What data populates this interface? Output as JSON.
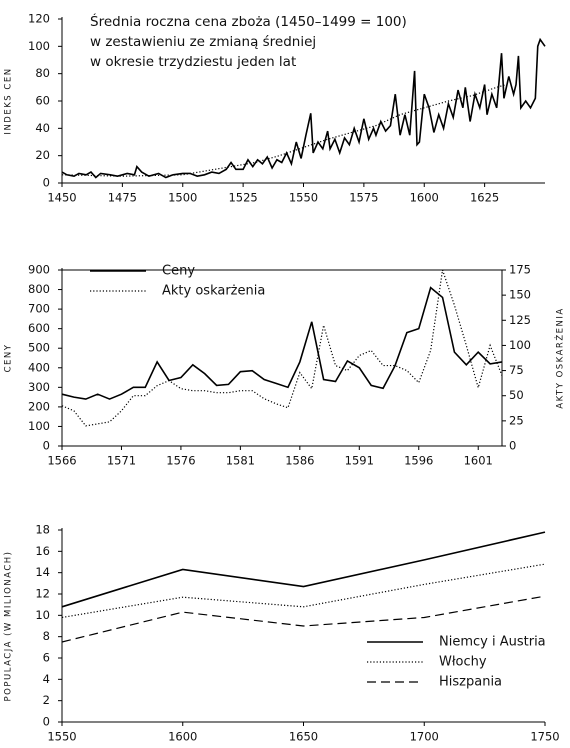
{
  "chart_data": [
    {
      "type": "line",
      "title": [
        "Średnia roczna cena zboża (1450–1499 = 100)",
        "w zestawieniu ze zmianą średniej",
        "w okresie trzydziestu jeden lat"
      ],
      "ylabel": "INDEKS CEN",
      "xlim": [
        1450,
        1650
      ],
      "xticks": [
        1450,
        1475,
        1500,
        1525,
        1550,
        1575,
        1600,
        1625
      ],
      "ylim": [
        0,
        120
      ],
      "yticks": [
        0,
        20,
        40,
        60,
        80,
        100,
        120
      ],
      "series": [
        {
          "color": "#000000",
          "dash": "solid",
          "x": [
            1450,
            1452,
            1455,
            1457,
            1460,
            1462,
            1464,
            1466,
            1470,
            1473,
            1477,
            1480,
            1481,
            1483,
            1486,
            1490,
            1493,
            1496,
            1500,
            1503,
            1506,
            1509,
            1512,
            1515,
            1518,
            1520,
            1522,
            1525,
            1527,
            1529,
            1531,
            1533,
            1535,
            1537,
            1539,
            1541,
            1543,
            1545,
            1547,
            1549,
            1551,
            1553,
            1554,
            1556,
            1558,
            1560,
            1561,
            1563,
            1565,
            1567,
            1569,
            1571,
            1573,
            1575,
            1577,
            1579,
            1580,
            1582,
            1584,
            1586,
            1588,
            1590,
            1592,
            1594,
            1596,
            1597,
            1598,
            1600,
            1602,
            1604,
            1606,
            1608,
            1610,
            1612,
            1614,
            1616,
            1617,
            1619,
            1621,
            1623,
            1625,
            1626,
            1628,
            1630,
            1632,
            1633,
            1635,
            1637,
            1638,
            1639,
            1640,
            1642,
            1644,
            1646,
            1647,
            1648,
            1650
          ],
          "values": [
            8,
            6,
            5,
            7,
            6,
            8,
            4,
            7,
            6,
            5,
            7,
            6,
            12,
            8,
            5,
            7,
            4,
            6,
            7,
            7,
            5,
            6,
            8,
            7,
            10,
            15,
            10,
            10,
            17,
            12,
            17,
            14,
            19,
            11,
            17,
            15,
            22,
            14,
            30,
            18,
            35,
            51,
            22,
            30,
            25,
            38,
            25,
            32,
            22,
            33,
            28,
            40,
            30,
            47,
            32,
            40,
            35,
            45,
            38,
            42,
            65,
            35,
            50,
            35,
            82,
            28,
            30,
            65,
            55,
            37,
            50,
            40,
            58,
            48,
            68,
            55,
            70,
            45,
            65,
            55,
            72,
            50,
            65,
            55,
            95,
            62,
            78,
            65,
            72,
            93,
            55,
            60,
            55,
            62,
            100,
            105,
            100
          ]
        },
        {
          "color": "#000000",
          "dash": "dotted",
          "x": [
            1450,
            1475,
            1500,
            1510,
            1520,
            1530,
            1540,
            1550,
            1560,
            1570,
            1580,
            1590,
            1600,
            1610,
            1620,
            1630,
            1634
          ],
          "values": [
            6,
            5,
            6,
            9,
            12,
            15,
            20,
            26,
            32,
            37,
            42,
            50,
            55,
            60,
            64,
            70,
            72
          ]
        }
      ]
    },
    {
      "type": "line",
      "ylabel": "CENY",
      "y2label": "AKTY OSKARŻENIA",
      "legend": "upper left",
      "xlim": [
        1566,
        1603
      ],
      "xticks": [
        1566,
        1571,
        1576,
        1581,
        1586,
        1591,
        1596,
        1601
      ],
      "ylim": [
        0,
        900
      ],
      "yticks": [
        0,
        100,
        200,
        300,
        400,
        500,
        600,
        700,
        800,
        900
      ],
      "y2lim": [
        0,
        175
      ],
      "y2ticks": [
        0,
        25,
        50,
        75,
        100,
        125,
        150,
        175
      ],
      "x": [
        1566,
        1567,
        1568,
        1569,
        1570,
        1571,
        1572,
        1573,
        1574,
        1575,
        1576,
        1577,
        1578,
        1579,
        1580,
        1581,
        1582,
        1583,
        1584,
        1585,
        1586,
        1587,
        1588,
        1589,
        1590,
        1591,
        1592,
        1593,
        1594,
        1595,
        1596,
        1597,
        1598,
        1599,
        1600,
        1601,
        1602,
        1603
      ],
      "series": [
        {
          "name": "Ceny",
          "color": "#000000",
          "dash": "solid",
          "values": [
            265,
            250,
            240,
            265,
            240,
            265,
            300,
            300,
            430,
            335,
            350,
            415,
            370,
            310,
            315,
            380,
            385,
            340,
            320,
            300,
            430,
            635,
            340,
            330,
            435,
            400,
            310,
            295,
            410,
            580,
            600,
            810,
            760,
            480,
            415,
            480,
            420,
            430
          ]
        },
        {
          "name": "Akty oskarżenia",
          "color": "#000000",
          "dash": "dotted",
          "axis": "y2",
          "values": [
            40,
            35,
            20,
            22,
            24,
            35,
            50,
            50,
            60,
            65,
            57,
            55,
            55,
            53,
            53,
            55,
            55,
            47,
            42,
            38,
            73,
            57,
            120,
            80,
            75,
            90,
            95,
            80,
            80,
            75,
            63,
            95,
            175,
            140,
            100,
            58,
            100,
            70
          ]
        }
      ]
    },
    {
      "type": "line",
      "ylabel": "POPULACJA (W MILIONACH)",
      "legend": "lower right",
      "xlim": [
        1550,
        1750
      ],
      "xticks": [
        1550,
        1600,
        1650,
        1700,
        1750
      ],
      "ylim": [
        0,
        18
      ],
      "yticks": [
        0,
        2,
        4,
        6,
        8,
        10,
        12,
        14,
        16,
        18
      ],
      "x": [
        1550,
        1600,
        1650,
        1700,
        1750
      ],
      "series": [
        {
          "name": "Niemcy i Austria",
          "color": "#000000",
          "dash": "solid",
          "values": [
            10.8,
            14.3,
            12.7,
            15.2,
            17.8
          ]
        },
        {
          "name": "Włochy",
          "color": "#000000",
          "dash": "dotted",
          "values": [
            9.8,
            11.7,
            10.8,
            12.9,
            14.8
          ]
        },
        {
          "name": "Hiszpania",
          "color": "#000000",
          "dash": "dashed",
          "values": [
            7.5,
            10.3,
            9.0,
            9.8,
            11.8
          ]
        }
      ]
    }
  ]
}
